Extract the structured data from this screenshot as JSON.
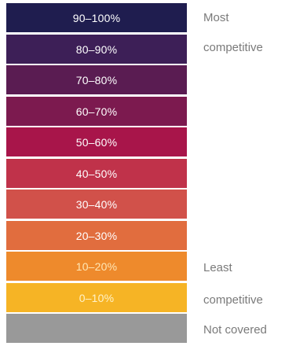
{
  "chart_data": {
    "type": "table",
    "bands": [
      {
        "label": "90–100%",
        "color": "#1f1d4f",
        "text_color": "#ffffff"
      },
      {
        "label": "80–90%",
        "color": "#3d1f57",
        "text_color": "#ffffff"
      },
      {
        "label": "70–80%",
        "color": "#5a1c52",
        "text_color": "#ffffff"
      },
      {
        "label": "60–70%",
        "color": "#7c1a4f",
        "text_color": "#ffffff"
      },
      {
        "label": "50–60%",
        "color": "#a8154a",
        "text_color": "#ffffff"
      },
      {
        "label": "40–50%",
        "color": "#c0324a",
        "text_color": "#ffffff"
      },
      {
        "label": "30–40%",
        "color": "#d1514a",
        "text_color": "#ffffff"
      },
      {
        "label": "20–30%",
        "color": "#e16d3e",
        "text_color": "#ffffff"
      },
      {
        "label": "10–20%",
        "color": "#ee8a2c",
        "text_color": "#ffe7b5"
      },
      {
        "label": "0–10%",
        "color": "#f6b425",
        "text_color": "#fff2c8"
      },
      {
        "label": "",
        "color": "#999999",
        "text_color": "#ffffff"
      }
    ],
    "annotations": {
      "most": "Most",
      "most_line2": "competitive",
      "least": "Least",
      "least_line2": "competitive",
      "not_covered": "Not covered"
    }
  }
}
